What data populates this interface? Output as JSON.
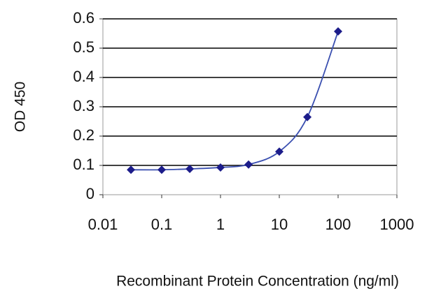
{
  "chart_data": {
    "type": "scatter",
    "x_label": "Recombinant Protein Concentration (ng/ml)",
    "y_label": "OD 450",
    "x": [
      0.03,
      0.1,
      0.3,
      1,
      3,
      10,
      30,
      100
    ],
    "series": [
      {
        "color": "#1c1c8a",
        "values": [
          0.085,
          0.085,
          0.088,
          0.093,
          0.103,
          0.147,
          0.265,
          0.557
        ]
      }
    ],
    "xlim": [
      0.01,
      1000
    ],
    "xticks": [
      0.01,
      0.1,
      1,
      10,
      100,
      1000
    ],
    "xscale": "log",
    "ylim": [
      0,
      0.6
    ],
    "yticks": [
      0,
      0.1,
      0.2,
      0.3,
      0.4,
      0.5,
      0.6
    ],
    "grid": true
  }
}
